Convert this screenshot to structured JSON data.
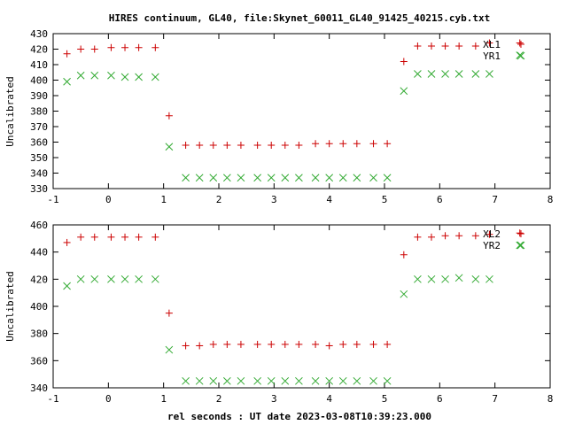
{
  "figure": {
    "title": "HIRES continuum, GL40, file:Skynet_60011_GL40_91425_40215.cyb.txt",
    "xlabel": "rel seconds : UT date 2023-03-08T10:39:23.000"
  },
  "colors": {
    "plus_series": "#cc0000",
    "cross_series": "#33aa33",
    "axes": "#000000"
  },
  "chart_data": [
    {
      "type": "scatter",
      "ylabel": "Uncalibrated",
      "xlim": [
        -1,
        8
      ],
      "ylim": [
        330,
        430
      ],
      "xticks": [
        -1,
        0,
        1,
        2,
        3,
        4,
        5,
        6,
        7,
        8
      ],
      "yticks": [
        330,
        340,
        350,
        360,
        370,
        380,
        390,
        400,
        410,
        420,
        430
      ],
      "grid": false,
      "legend_position": "top-right",
      "series": [
        {
          "name": "XL1",
          "marker": "plus",
          "color": "#cc0000",
          "x": [
            -0.75,
            -0.5,
            -0.25,
            0.05,
            0.3,
            0.55,
            0.85,
            1.1,
            1.4,
            1.65,
            1.9,
            2.15,
            2.4,
            2.7,
            2.95,
            3.2,
            3.45,
            3.75,
            4.0,
            4.25,
            4.5,
            4.8,
            5.05,
            5.35,
            5.6,
            5.85,
            6.1,
            6.35,
            6.65,
            6.9,
            7.45
          ],
          "y": [
            417,
            420,
            420,
            421,
            421,
            421,
            421,
            377,
            358,
            358,
            358,
            358,
            358,
            358,
            358,
            358,
            358,
            359,
            359,
            359,
            359,
            359,
            359,
            412,
            422,
            422,
            422,
            422,
            422,
            424,
            424
          ]
        },
        {
          "name": "YR1",
          "marker": "cross",
          "color": "#33aa33",
          "x": [
            -0.75,
            -0.5,
            -0.25,
            0.05,
            0.3,
            0.55,
            0.85,
            1.1,
            1.4,
            1.65,
            1.9,
            2.15,
            2.4,
            2.7,
            2.95,
            3.2,
            3.45,
            3.75,
            4.0,
            4.25,
            4.5,
            4.8,
            5.05,
            5.35,
            5.6,
            5.85,
            6.1,
            6.35,
            6.65,
            6.9,
            7.45
          ],
          "y": [
            399,
            403,
            403,
            403,
            402,
            402,
            402,
            357,
            337,
            337,
            337,
            337,
            337,
            337,
            337,
            337,
            337,
            337,
            337,
            337,
            337,
            337,
            337,
            393,
            404,
            404,
            404,
            404,
            404,
            404,
            416
          ]
        }
      ]
    },
    {
      "type": "scatter",
      "ylabel": "Uncalibrated",
      "xlim": [
        -1,
        8
      ],
      "ylim": [
        340,
        460
      ],
      "xticks": [
        -1,
        0,
        1,
        2,
        3,
        4,
        5,
        6,
        7,
        8
      ],
      "yticks": [
        340,
        360,
        380,
        400,
        420,
        440,
        460
      ],
      "grid": false,
      "legend_position": "top-right",
      "series": [
        {
          "name": "XL2",
          "marker": "plus",
          "color": "#cc0000",
          "x": [
            -0.75,
            -0.5,
            -0.25,
            0.05,
            0.3,
            0.55,
            0.85,
            1.1,
            1.4,
            1.65,
            1.9,
            2.15,
            2.4,
            2.7,
            2.95,
            3.2,
            3.45,
            3.75,
            4.0,
            4.25,
            4.5,
            4.8,
            5.05,
            5.35,
            5.6,
            5.85,
            6.1,
            6.35,
            6.65,
            6.9,
            7.45
          ],
          "y": [
            447,
            451,
            451,
            451,
            451,
            451,
            451,
            395,
            371,
            371,
            372,
            372,
            372,
            372,
            372,
            372,
            372,
            372,
            371,
            372,
            372,
            372,
            372,
            438,
            451,
            451,
            452,
            452,
            452,
            453,
            454
          ]
        },
        {
          "name": "YR2",
          "marker": "cross",
          "color": "#33aa33",
          "x": [
            -0.75,
            -0.5,
            -0.25,
            0.05,
            0.3,
            0.55,
            0.85,
            1.1,
            1.4,
            1.65,
            1.9,
            2.15,
            2.4,
            2.7,
            2.95,
            3.2,
            3.45,
            3.75,
            4.0,
            4.25,
            4.5,
            4.8,
            5.05,
            5.35,
            5.6,
            5.85,
            6.1,
            6.35,
            6.65,
            6.9,
            7.45
          ],
          "y": [
            415,
            420,
            420,
            420,
            420,
            420,
            420,
            368,
            345,
            345,
            345,
            345,
            345,
            345,
            345,
            345,
            345,
            345,
            345,
            345,
            345,
            345,
            345,
            409,
            420,
            420,
            420,
            421,
            420,
            420,
            445
          ]
        }
      ]
    }
  ]
}
